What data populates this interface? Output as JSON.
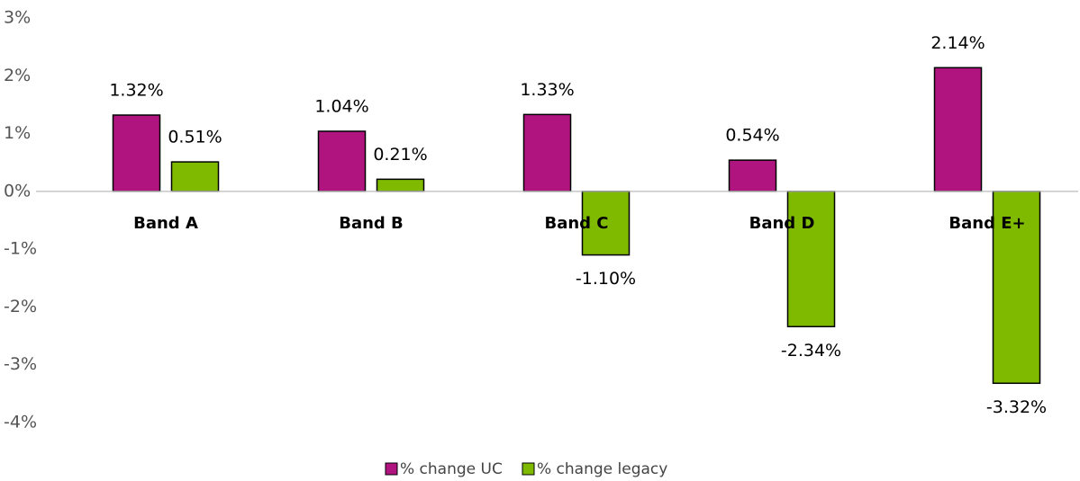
{
  "chart_data": {
    "type": "bar",
    "categories": [
      "Band A",
      "Band B",
      "Band C",
      "Band D",
      "Band E+"
    ],
    "series": [
      {
        "name": "% change UC",
        "color": "#b0157f",
        "values": [
          1.32,
          1.04,
          1.33,
          0.54,
          2.14
        ],
        "value_labels": [
          "1.32%",
          "1.04%",
          "1.33%",
          "0.54%",
          "2.14%"
        ]
      },
      {
        "name": "% change legacy",
        "color": "#7fba00",
        "values": [
          0.51,
          0.21,
          -1.1,
          -2.34,
          -3.32
        ],
        "value_labels": [
          "0.51%",
          "0.21%",
          "-1.10%",
          "-2.34%",
          "-3.32%"
        ]
      }
    ],
    "ylim": [
      -4,
      3
    ],
    "yticks": [
      {
        "value": 3,
        "label": "3%"
      },
      {
        "value": 2,
        "label": "2%"
      },
      {
        "value": 1,
        "label": "1%"
      },
      {
        "value": 0,
        "label": "0%"
      },
      {
        "value": -1,
        "label": "-1%"
      },
      {
        "value": -2,
        "label": "-2%"
      },
      {
        "value": -3,
        "label": "-3%"
      },
      {
        "value": -4,
        "label": "-4%"
      }
    ],
    "grid": false,
    "legend": "bottom"
  }
}
